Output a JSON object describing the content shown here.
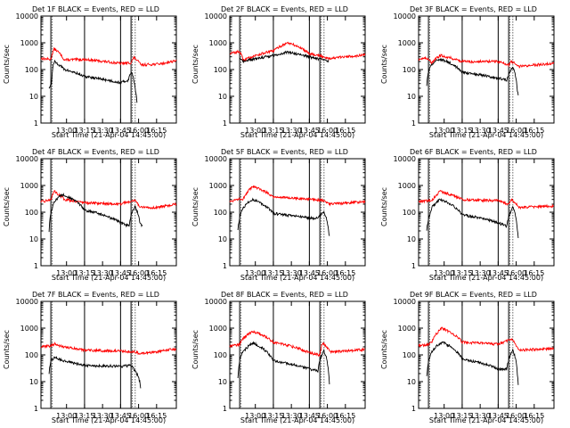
{
  "chart_data": {
    "type": "line",
    "panels": [
      {
        "title": "Det 1F BLACK = Events, RED = LLD",
        "ylabel": "Counts/sec",
        "xlabel": "Start Time (21-Apr-04 14:45:00)"
      },
      {
        "title": "Det 2F BLACK = Events, RED = LLD",
        "ylabel": "Counts/sec",
        "xlabel": "Start Time (21-Apr-04 14:45:00)"
      },
      {
        "title": "Det 3F BLACK = Events, RED = LLD",
        "ylabel": "Counts/sec",
        "xlabel": "Start Time (21-Apr-04 14:45:00)"
      },
      {
        "title": "Det 4F BLACK = Events, RED = LLD",
        "ylabel": "Counts/sec",
        "xlabel": "Start Time (21-Apr-04 14:45:00)"
      },
      {
        "title": "Det 5F BLACK = Events, RED = LLD",
        "ylabel": "Counts/sec",
        "xlabel": "Start Time (21-Apr-04 14:45:00)"
      },
      {
        "title": "Det 6F BLACK = Events, RED = LLD",
        "ylabel": "Counts/sec",
        "xlabel": "Start Time (21-Apr-04 14:45:00)"
      },
      {
        "title": "Det 7F BLACK = Events, RED = LLD",
        "ylabel": "Counts/sec",
        "xlabel": "Start Time (21-Apr-04 14:45:00)"
      },
      {
        "title": "Det 8F BLACK = Events, RED = LLD",
        "ylabel": "Counts/sec",
        "xlabel": "Start Time (21-Apr-04 14:45:00)"
      },
      {
        "title": "Det 9F BLACK = Events, RED = LLD",
        "ylabel": "Counts/sec",
        "xlabel": "Start Time (21-Apr-04 14:45:00)"
      }
    ],
    "x_ticks": [
      "13:00",
      "13:15",
      "13:30",
      "13:45",
      "16:00",
      "16:15"
    ],
    "y_ticks": [
      "1",
      "10",
      "100",
      "1000",
      "10000"
    ],
    "y_scale": "log",
    "ylim": [
      1,
      10000
    ],
    "series_colors": {
      "events": "#000000",
      "lld": "#ff0000"
    }
  }
}
